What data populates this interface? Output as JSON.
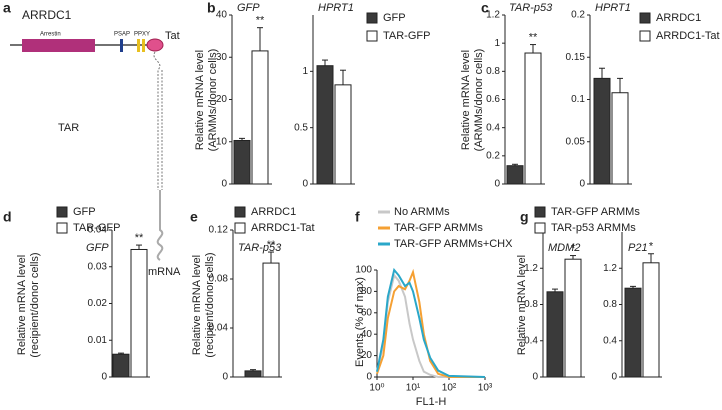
{
  "panel_labels": [
    "a",
    "b",
    "c",
    "d",
    "e",
    "f",
    "g"
  ],
  "diagram": {
    "protein": "ARRDC1",
    "domain": "Arrestin",
    "motif1": "PSAP",
    "motif2": "PPXY",
    "tag": "Tat",
    "rna": "TAR",
    "mrna": "mRNA"
  },
  "chart_data": [
    {
      "type": "bar",
      "title": "GFP",
      "ylabel": [
        "Relative mRNA level",
        "(ARMMs/donor cells)"
      ],
      "ylim": [
        0,
        40
      ],
      "yticks": [
        0,
        10,
        20,
        30,
        40
      ],
      "annotation": "**",
      "series": [
        {
          "color": "#3a3a3a",
          "values": [
            10.3
          ],
          "errors": [
            0.5
          ]
        },
        {
          "color": "#ffffff",
          "values": [
            31.5
          ],
          "errors": [
            5.5
          ]
        }
      ]
    },
    {
      "type": "bar",
      "title": "HPRT1",
      "ylim": [
        0,
        1.5
      ],
      "yticks": [
        0,
        0.5,
        1
      ],
      "series": [
        {
          "name": "GFP",
          "color": "#3a3a3a",
          "values": [
            1.05
          ],
          "errors": [
            0.05
          ]
        },
        {
          "name": "TAR-GFP",
          "color": "#ffffff",
          "values": [
            0.88
          ],
          "errors": [
            0.13
          ]
        }
      ]
    },
    {
      "type": "bar",
      "title": "TAR-p53",
      "ylabel": [
        "Relative mRNA level",
        "(ARMMs/donor cells)"
      ],
      "ylim": [
        0,
        1.2
      ],
      "yticks": [
        0,
        0.2,
        0.4,
        0.6,
        0.8,
        1,
        1.2
      ],
      "annotation": "**",
      "series": [
        {
          "color": "#3a3a3a",
          "values": [
            0.13
          ],
          "errors": [
            0.01
          ]
        },
        {
          "color": "#ffffff",
          "values": [
            0.93
          ],
          "errors": [
            0.06
          ]
        }
      ]
    },
    {
      "type": "bar",
      "title": "HPRT1",
      "ylim": [
        0,
        0.2
      ],
      "yticks": [
        0,
        0.05,
        0.1,
        0.15,
        0.2
      ],
      "series": [
        {
          "name": "ARRDC1",
          "color": "#3a3a3a",
          "values": [
            0.125
          ],
          "errors": [
            0.012
          ]
        },
        {
          "name": "ARRDC1-Tat",
          "color": "#ffffff",
          "values": [
            0.108
          ],
          "errors": [
            0.017
          ]
        }
      ]
    },
    {
      "type": "bar",
      "title": "GFP",
      "ylabel": [
        "Relative mRNA level",
        "(recipient/donor cells)"
      ],
      "ylim": [
        0,
        0.04
      ],
      "yticks": [
        0,
        0.01,
        0.02,
        0.03,
        0.04
      ],
      "annotation": "**",
      "series": [
        {
          "name": "GFP",
          "color": "#3a3a3a",
          "values": [
            0.0062
          ],
          "errors": [
            0.0003
          ]
        },
        {
          "name": "TAR-GFP",
          "color": "#ffffff",
          "values": [
            0.0347
          ],
          "errors": [
            0.0012
          ]
        }
      ]
    },
    {
      "type": "bar",
      "title": "TAR-p53",
      "ylabel": [
        "Relative mRNA level",
        "(recipient/donor cells)"
      ],
      "ylim": [
        0,
        0.12
      ],
      "yticks": [
        0,
        0.04,
        0.08,
        0.12
      ],
      "annotation": "**",
      "series": [
        {
          "name": "ARRDC1",
          "color": "#3a3a3a",
          "values": [
            0.005
          ],
          "errors": [
            0.001
          ]
        },
        {
          "name": "ARRDC1-Tat",
          "color": "#ffffff",
          "values": [
            0.093
          ],
          "errors": [
            0.009
          ]
        }
      ]
    },
    {
      "type": "line",
      "xlabel": "FL1-H",
      "ylabel": [
        "Events (% of max)"
      ],
      "xlog": true,
      "xlim": [
        1,
        1000
      ],
      "ylim": [
        0,
        100
      ],
      "xticks": [
        {
          "value": 1,
          "label": "10⁰"
        },
        {
          "value": 10,
          "label": "10¹"
        },
        {
          "value": 100,
          "label": "10²"
        },
        {
          "value": 1000,
          "label": "10³"
        }
      ],
      "yticks": [
        0,
        20,
        40,
        60,
        80,
        100
      ],
      "x": [
        1,
        1.5,
        2,
        3,
        4,
        6,
        8,
        10,
        15,
        20,
        30,
        50,
        100,
        1000
      ],
      "series": [
        {
          "name": "No ARMMs",
          "color": "#c8c8c8",
          "values": [
            5,
            30,
            70,
            95,
            90,
            75,
            50,
            35,
            15,
            5,
            2,
            0,
            0,
            0
          ]
        },
        {
          "name": "TAR-GFP ARMMs",
          "color": "#f5a033",
          "values": [
            3,
            20,
            55,
            80,
            85,
            82,
            90,
            98,
            70,
            40,
            15,
            3,
            0,
            0
          ]
        },
        {
          "name": "TAR-GFP ARMMs+CHX",
          "color": "#2aa7c9",
          "values": [
            5,
            35,
            75,
            100,
            95,
            85,
            88,
            80,
            55,
            35,
            18,
            6,
            1,
            0
          ]
        }
      ]
    },
    {
      "type": "bar",
      "title": "MDM2",
      "ylabel": [
        "Relative mRNA level"
      ],
      "ylim": [
        0,
        1.6
      ],
      "yticks": [
        0,
        0.4,
        0.8,
        1.2
      ],
      "annotation": "*",
      "series": [
        {
          "color": "#3a3a3a",
          "values": [
            0.94
          ],
          "errors": [
            0.03
          ]
        },
        {
          "color": "#ffffff",
          "values": [
            1.3
          ],
          "errors": [
            0.04
          ]
        }
      ]
    },
    {
      "type": "bar",
      "title": "P21",
      "ylim": [
        0,
        1.6
      ],
      "yticks": [
        0,
        0.4,
        0.8,
        1.2
      ],
      "annotation": "*",
      "series": [
        {
          "name": "TAR-GFP ARMMs",
          "color": "#3a3a3a",
          "values": [
            0.98
          ],
          "errors": [
            0.02
          ]
        },
        {
          "name": "TAR-p53 ARMMs",
          "color": "#ffffff",
          "values": [
            1.26
          ],
          "errors": [
            0.1
          ]
        }
      ]
    }
  ]
}
